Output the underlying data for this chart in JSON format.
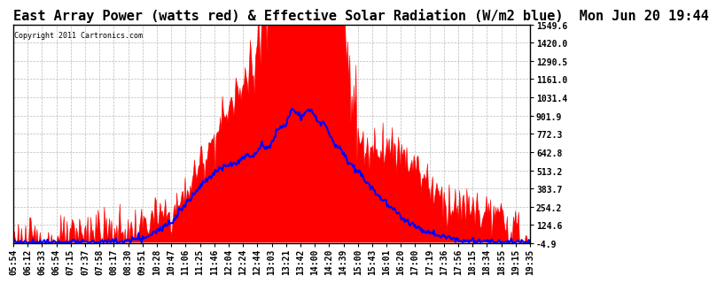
{
  "title": "East Array Power (watts red) & Effective Solar Radiation (W/m2 blue)  Mon Jun 20 19:44",
  "copyright": "Copyright 2011 Cartronics.com",
  "yticks": [
    1549.6,
    1420.0,
    1290.5,
    1161.0,
    1031.4,
    901.9,
    772.3,
    642.8,
    513.2,
    383.7,
    254.2,
    124.6,
    -4.9
  ],
  "ymin": -4.9,
  "ymax": 1549.6,
  "xtick_labels": [
    "05:54",
    "06:12",
    "06:33",
    "06:54",
    "07:15",
    "07:37",
    "07:58",
    "08:17",
    "08:30",
    "09:51",
    "10:28",
    "10:47",
    "11:06",
    "11:25",
    "11:46",
    "12:04",
    "12:24",
    "12:44",
    "13:03",
    "13:21",
    "13:42",
    "14:00",
    "14:20",
    "14:39",
    "15:00",
    "15:43",
    "16:01",
    "16:20",
    "17:00",
    "17:19",
    "17:36",
    "17:56",
    "18:15",
    "18:34",
    "18:55",
    "19:15",
    "19:35"
  ],
  "bg_color": "#ffffff",
  "red_color": "#ff0000",
  "blue_color": "#0000ff",
  "grid_color": "#aaaaaa",
  "title_fontsize": 11,
  "tick_fontsize": 7
}
